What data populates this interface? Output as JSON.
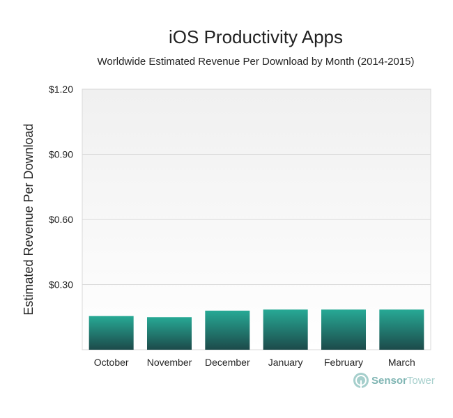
{
  "chart_data": {
    "type": "bar",
    "title": "iOS Productivity Apps",
    "subtitle": "Worldwide Estimated Revenue Per Download by Month (2014-2015)",
    "xlabel": "",
    "ylabel": "Estimated Revenue Per Download",
    "categories": [
      "October",
      "November",
      "December",
      "January",
      "February",
      "March"
    ],
    "values": [
      0.155,
      0.15,
      0.18,
      0.185,
      0.185,
      0.185
    ],
    "ylim": [
      0,
      1.2
    ],
    "yticks": [
      0.3,
      0.6,
      0.9,
      1.2
    ],
    "ytick_labels": [
      "$0.30",
      "$0.60",
      "$0.90",
      "$1.20"
    ],
    "grid": true,
    "colors": {
      "bar_top": "#27A995",
      "bar_bottom": "#1C4A4A",
      "plot_bg_top": "#F0F0F0",
      "plot_bg_bottom": "#FFFFFF",
      "grid": "#D9D9D9"
    }
  },
  "branding": {
    "logo_text_part1": "Sensor",
    "logo_text_part2": "Tower",
    "logo_icon": "sensor-tower-logo-icon",
    "color_part1": "#7FB5B3",
    "color_part2": "#A6CFCC"
  }
}
